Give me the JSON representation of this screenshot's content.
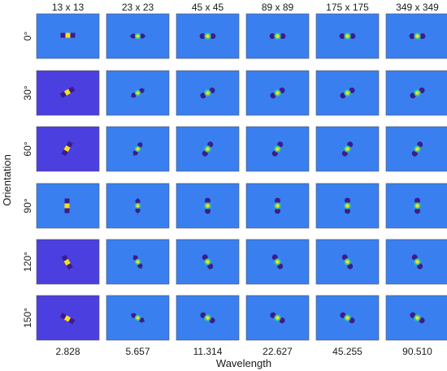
{
  "figure": {
    "column_titles": [
      "13 x 13",
      "23 x 23",
      "45 x 45",
      "89 x 89",
      "175 x 175",
      "349 x 349"
    ],
    "row_labels": [
      "0°",
      "30°",
      "60°",
      "90°",
      "120°",
      "150°"
    ],
    "wavelength_labels": [
      "2.828",
      "5.657",
      "11.314",
      "22.627",
      "45.255",
      "90.510"
    ],
    "x_axis_title": "Wavelength",
    "y_axis_title": "Orientation",
    "orientations_deg": [
      0,
      30,
      60,
      90,
      120,
      150
    ]
  },
  "colors": {
    "background_field": "#3a7ff0",
    "background_field_small": "#4b3fe0",
    "positive_peak": "#f5e11b",
    "positive_mid": "#2ec7a0",
    "negative_lobe": "#3c1c8c"
  }
}
